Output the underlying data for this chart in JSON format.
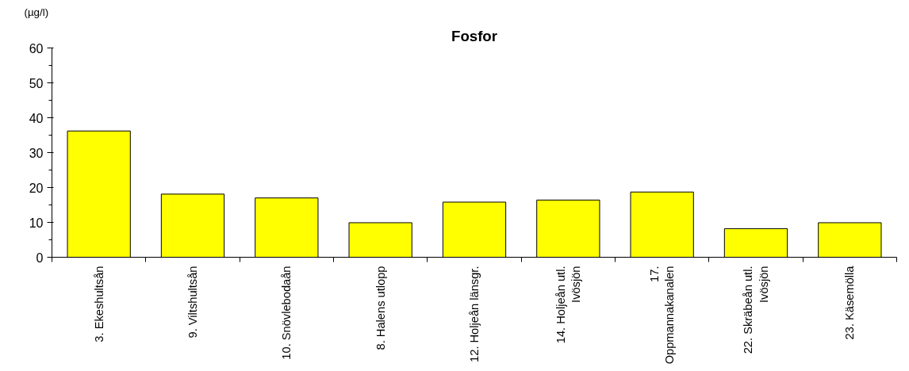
{
  "chart_data": {
    "type": "bar",
    "title": "Fosfor",
    "ylabel": "(µg/l)",
    "categories": [
      "3. Ekeshultsån",
      "9. Viltshultsån",
      "10. Snövlebodaån",
      "8. Halens utlopp",
      "12. Holjeån länsgr.",
      "14. Holjeån utl.\nIvösjön",
      "17.\nOppmannakanalen",
      "22. Skräbeån utl.\nIvösjön",
      "23. Käsemölla"
    ],
    "values": [
      36.2,
      18.1,
      17.0,
      9.9,
      15.8,
      16.4,
      18.7,
      8.2,
      9.9
    ],
    "color": "#ffff00",
    "ylim": [
      0,
      60
    ],
    "yticks": [
      0,
      10,
      20,
      30,
      40,
      50,
      60
    ],
    "grid": false
  }
}
